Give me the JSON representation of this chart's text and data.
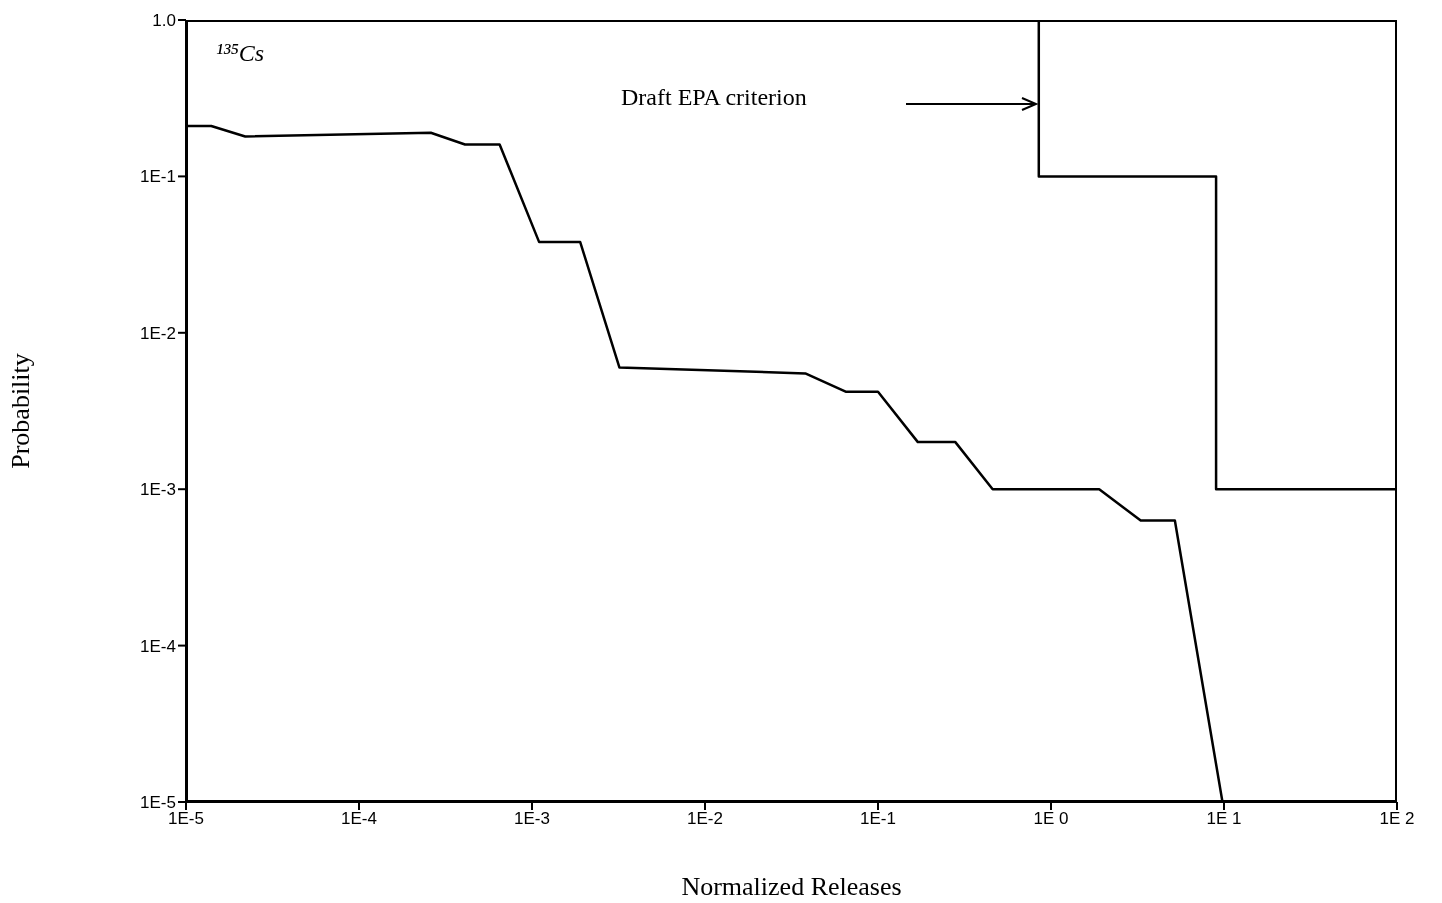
{
  "chart_data": {
    "type": "line",
    "xlabel": "Normalized Releases",
    "ylabel": "Probability",
    "log": "xy",
    "marker": "none",
    "line_style": "solid",
    "xlim": [
      1e-05,
      100
    ],
    "ylim": [
      1e-05,
      1
    ],
    "xticks": [
      {
        "value": 1e-05,
        "label": "1E-5"
      },
      {
        "value": 0.0001,
        "label": "1E-4"
      },
      {
        "value": 0.001,
        "label": "1E-3"
      },
      {
        "value": 0.01,
        "label": "1E-2"
      },
      {
        "value": 0.1,
        "label": "1E-1"
      },
      {
        "value": 1,
        "label": "1E 0"
      },
      {
        "value": 10,
        "label": "1E 1"
      },
      {
        "value": 100,
        "label": "1E 2"
      }
    ],
    "yticks": [
      {
        "value": 1e-05,
        "label": "1E-5"
      },
      {
        "value": 0.0001,
        "label": "1E-4"
      },
      {
        "value": 0.001,
        "label": "1E-3"
      },
      {
        "value": 0.01,
        "label": "1E-2"
      },
      {
        "value": 0.1,
        "label": "1E-1"
      },
      {
        "value": 1,
        "label": "1.0"
      }
    ],
    "series": [
      {
        "color": "#000000",
        "x": [
          1e-05,
          1.4e-05,
          2.2e-05,
          0.00026,
          0.00041,
          0.00065,
          0.0011,
          0.0019,
          0.0032,
          0.038,
          0.065,
          0.1,
          0.17,
          0.28,
          0.46,
          1.9,
          3.3,
          5.2,
          9.8
        ],
        "values": [
          0.21,
          0.21,
          0.18,
          0.19,
          0.16,
          0.16,
          0.038,
          0.038,
          0.006,
          0.0055,
          0.0042,
          0.0042,
          0.002,
          0.002,
          0.001,
          0.001,
          0.00063,
          0.00063,
          1e-05
        ]
      },
      {
        "color": "#000000",
        "x": [
          0.85,
          0.85,
          9,
          9,
          100
        ],
        "values": [
          1,
          0.1,
          0.1,
          0.001,
          0.001
        ]
      }
    ],
    "annotations": [
      "¹³⁵Cs",
      "Draft EPA criterion"
    ]
  }
}
